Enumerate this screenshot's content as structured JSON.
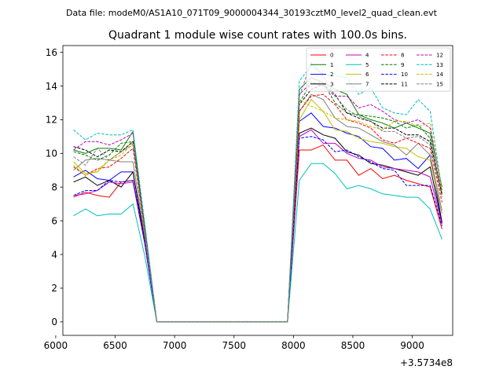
{
  "figure": {
    "suptitle": "Data file: modeM0/AS1A10_071T09_9000004344_30193cztM0_level2_quad_clean.evt"
  },
  "chart_data": {
    "type": "line",
    "title": "Quadrant 1 module wise count rates with 100.0s bins.",
    "xlabel": "",
    "ylabel": "",
    "x_offset_label": "+3.5734e8",
    "xlim": [
      6060,
      9340
    ],
    "ylim": [
      -0.8,
      16.4
    ],
    "xticks": [
      6000,
      6500,
      7000,
      7500,
      8000,
      8500,
      9000
    ],
    "yticks": [
      0,
      2,
      4,
      6,
      8,
      10,
      12,
      14,
      16
    ],
    "grid": false,
    "legend": {
      "placement": "top-right",
      "columns": 4
    },
    "x": [
      6150,
      6250,
      6350,
      6450,
      6550,
      6650,
      6750,
      6850,
      6950,
      7050,
      7150,
      7250,
      7350,
      7450,
      7550,
      7650,
      7750,
      7850,
      7950,
      8050,
      8150,
      8250,
      8350,
      8450,
      8550,
      8650,
      8750,
      8850,
      8950,
      9050,
      9150,
      9250
    ],
    "series": [
      {
        "name": "0",
        "color": "#ff0000",
        "dash": "solid",
        "values": [
          7.4,
          7.7,
          7.5,
          7.4,
          8.3,
          8.4,
          4.7,
          0.0,
          0.0,
          0.0,
          0.0,
          0.0,
          0.0,
          0.0,
          0.0,
          0.0,
          0.0,
          0.0,
          0.0,
          10.2,
          10.2,
          10.5,
          9.6,
          9.6,
          8.7,
          9.1,
          8.5,
          8.7,
          8.4,
          8.2,
          8.0,
          5.5
        ]
      },
      {
        "name": "1",
        "color": "#008000",
        "dash": "solid",
        "values": [
          10.2,
          10.0,
          10.3,
          10.3,
          10.2,
          11.3,
          5.4,
          0.0,
          0.0,
          0.0,
          0.0,
          0.0,
          0.0,
          0.0,
          0.0,
          0.0,
          0.0,
          0.0,
          0.0,
          13.8,
          14.5,
          14.2,
          13.8,
          13.5,
          12.3,
          12.0,
          11.8,
          11.5,
          11.8,
          11.5,
          11.2,
          8.0
        ]
      },
      {
        "name": "2",
        "color": "#0000ff",
        "dash": "solid",
        "values": [
          8.6,
          9.0,
          8.5,
          8.4,
          8.9,
          8.9,
          4.8,
          0.0,
          0.0,
          0.0,
          0.0,
          0.0,
          0.0,
          0.0,
          0.0,
          0.0,
          0.0,
          0.0,
          0.0,
          11.9,
          12.4,
          11.6,
          11.5,
          11.2,
          11.0,
          10.4,
          10.3,
          9.6,
          9.7,
          9.1,
          9.9,
          5.9
        ]
      },
      {
        "name": "3",
        "color": "#000000",
        "dash": "solid",
        "values": [
          8.3,
          8.6,
          8.1,
          8.4,
          8.0,
          8.9,
          4.8,
          0.0,
          0.0,
          0.0,
          0.0,
          0.0,
          0.0,
          0.0,
          0.0,
          0.0,
          0.0,
          0.0,
          0.0,
          11.2,
          11.5,
          11.1,
          10.9,
          10.1,
          9.9,
          9.4,
          9.3,
          9.1,
          8.9,
          8.7,
          9.2,
          5.9
        ]
      },
      {
        "name": "4",
        "color": "#c000c0",
        "dash": "solid",
        "values": [
          7.5,
          7.6,
          7.8,
          8.3,
          8.2,
          8.3,
          4.6,
          0.0,
          0.0,
          0.0,
          0.0,
          0.0,
          0.0,
          0.0,
          0.0,
          0.0,
          0.0,
          0.0,
          0.0,
          11.0,
          11.4,
          10.6,
          10.6,
          10.0,
          9.7,
          9.6,
          9.2,
          9.1,
          9.0,
          8.9,
          8.6,
          5.8
        ]
      },
      {
        "name": "5",
        "color": "#00bfbf",
        "dash": "solid",
        "values": [
          6.3,
          6.7,
          6.3,
          6.4,
          6.4,
          7.0,
          3.9,
          0.0,
          0.0,
          0.0,
          0.0,
          0.0,
          0.0,
          0.0,
          0.0,
          0.0,
          0.0,
          0.0,
          0.0,
          8.4,
          9.4,
          9.4,
          8.8,
          7.9,
          8.1,
          7.9,
          7.6,
          7.5,
          7.4,
          7.4,
          6.7,
          4.9
        ]
      },
      {
        "name": "6",
        "color": "#bfbf00",
        "dash": "solid",
        "values": [
          9.5,
          8.8,
          8.9,
          9.6,
          10.1,
          10.7,
          5.3,
          0.0,
          0.0,
          0.0,
          0.0,
          0.0,
          0.0,
          0.0,
          0.0,
          0.0,
          0.0,
          0.0,
          0.0,
          12.0,
          13.2,
          12.5,
          11.4,
          11.3,
          10.9,
          10.7,
          10.6,
          10.4,
          10.3,
          9.8,
          9.6,
          6.4
        ]
      },
      {
        "name": "7",
        "color": "#808080",
        "dash": "solid",
        "values": [
          9.0,
          9.6,
          9.7,
          9.6,
          9.5,
          9.5,
          5.0,
          0.0,
          0.0,
          0.0,
          0.0,
          0.0,
          0.0,
          0.0,
          0.0,
          0.0,
          0.0,
          0.0,
          0.0,
          12.5,
          13.5,
          13.2,
          12.1,
          11.6,
          11.5,
          11.1,
          10.7,
          10.5,
          9.9,
          10.6,
          9.9,
          6.6
        ]
      },
      {
        "name": "8",
        "color": "#ff0000",
        "dash": "dashed",
        "values": [
          9.2,
          8.7,
          9.1,
          9.2,
          9.7,
          10.3,
          5.2,
          0.0,
          0.0,
          0.0,
          0.0,
          0.0,
          0.0,
          0.0,
          0.0,
          0.0,
          0.0,
          0.0,
          0.0,
          12.5,
          13.4,
          13.5,
          12.9,
          12.0,
          11.8,
          11.5,
          10.8,
          10.6,
          10.9,
          10.6,
          10.3,
          7.1
        ]
      },
      {
        "name": "9",
        "color": "#008000",
        "dash": "dashed",
        "values": [
          10.1,
          9.9,
          9.6,
          9.9,
          10.6,
          10.7,
          5.6,
          0.0,
          0.0,
          0.0,
          0.0,
          0.0,
          0.0,
          0.0,
          0.0,
          0.0,
          0.0,
          0.0,
          0.0,
          13.0,
          14.2,
          14.2,
          13.0,
          12.4,
          12.3,
          12.2,
          12.1,
          11.9,
          11.5,
          11.7,
          10.9,
          7.5
        ]
      },
      {
        "name": "10",
        "color": "#0000ff",
        "dash": "dashed",
        "values": [
          7.5,
          7.8,
          7.8,
          8.4,
          8.3,
          8.4,
          4.7,
          0.0,
          0.0,
          0.0,
          0.0,
          0.0,
          0.0,
          0.0,
          0.0,
          0.0,
          0.0,
          0.0,
          0.0,
          10.9,
          11.0,
          10.8,
          10.1,
          10.2,
          9.8,
          9.5,
          9.1,
          9.0,
          8.1,
          8.1,
          8.1,
          5.7
        ]
      },
      {
        "name": "11",
        "color": "#000000",
        "dash": "dashed",
        "values": [
          10.4,
          10.2,
          9.8,
          10.2,
          10.1,
          10.7,
          5.5,
          0.0,
          0.0,
          0.0,
          0.0,
          0.0,
          0.0,
          0.0,
          0.0,
          0.0,
          0.0,
          0.0,
          0.0,
          12.9,
          13.8,
          14.1,
          13.5,
          12.4,
          12.1,
          11.9,
          11.5,
          11.5,
          11.1,
          11.1,
          10.7,
          7.6
        ]
      },
      {
        "name": "12",
        "color": "#c000c0",
        "dash": "dashed",
        "values": [
          10.2,
          10.7,
          10.7,
          10.5,
          10.8,
          11.2,
          5.7,
          0.0,
          0.0,
          0.0,
          0.0,
          0.0,
          0.0,
          0.0,
          0.0,
          0.0,
          0.0,
          0.0,
          0.0,
          13.5,
          14.2,
          14.0,
          13.4,
          13.4,
          12.7,
          12.9,
          12.5,
          12.0,
          11.8,
          12.0,
          11.5,
          7.8
        ]
      },
      {
        "name": "13",
        "color": "#00bfbf",
        "dash": "dashed",
        "values": [
          11.4,
          10.8,
          11.2,
          11.1,
          11.1,
          11.4,
          5.8,
          0.0,
          0.0,
          0.0,
          0.0,
          0.0,
          0.0,
          0.0,
          0.0,
          0.0,
          0.0,
          0.0,
          0.0,
          14.3,
          15.2,
          14.7,
          14.6,
          14.5,
          13.5,
          13.9,
          12.7,
          12.4,
          12.3,
          13.2,
          12.5,
          7.8
        ]
      },
      {
        "name": "14",
        "color": "#bfbf00",
        "dash": "dashed",
        "values": [
          9.3,
          8.7,
          9.0,
          9.6,
          9.9,
          10.6,
          5.3,
          0.0,
          0.0,
          0.0,
          0.0,
          0.0,
          0.0,
          0.0,
          0.0,
          0.0,
          0.0,
          0.0,
          0.0,
          13.2,
          12.8,
          12.5,
          12.1,
          12.0,
          11.9,
          11.6,
          11.4,
          11.9,
          11.9,
          11.6,
          11.8,
          7.8
        ]
      },
      {
        "name": "15",
        "color": "#808080",
        "dash": "dashed",
        "values": [
          9.8,
          9.3,
          10.3,
          9.6,
          10.1,
          10.5,
          5.3,
          0.0,
          0.0,
          0.0,
          0.0,
          0.0,
          0.0,
          0.0,
          0.0,
          0.0,
          0.0,
          0.0,
          0.0,
          13.4,
          15.4,
          14.6,
          13.4,
          12.6,
          12.2,
          11.9,
          11.3,
          11.3,
          10.9,
          11.0,
          10.5,
          7.4
        ]
      }
    ]
  }
}
